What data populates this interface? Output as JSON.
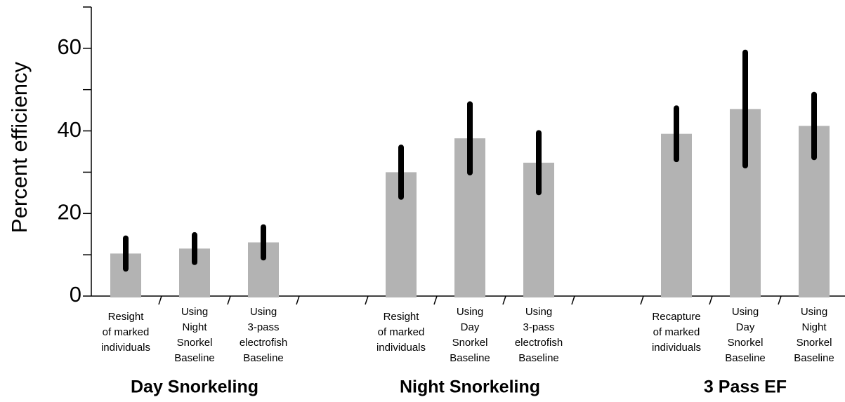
{
  "chart_data": {
    "type": "bar",
    "y_label": "Percent efficiency",
    "categories": [
      [
        "Resight",
        "of marked",
        "individuals"
      ],
      [
        "Using",
        "Night",
        "Snorkel",
        "Baseline"
      ],
      [
        "Using",
        "3-pass",
        "electrofish",
        "Baseline"
      ],
      null,
      [
        "Resight",
        "of marked",
        "individuals"
      ],
      [
        "Using",
        "Day",
        "Snorkel",
        "Baseline"
      ],
      [
        "Using",
        "3-pass",
        "electrofish",
        "Baseline"
      ],
      null,
      [
        "Recapture",
        "of marked",
        "individuals"
      ],
      [
        "Using",
        "Day",
        "Snorkel",
        "Baseline"
      ],
      [
        "Using",
        "Night",
        "Snorkel",
        "Baseline"
      ]
    ],
    "values": [
      10.3,
      11.5,
      13,
      null,
      30,
      38.2,
      32.3,
      null,
      39.3,
      45.3,
      41.2
    ],
    "errors": [
      3.7,
      3.3,
      3.7,
      null,
      6,
      8.3,
      7.2,
      null,
      6.2,
      13.7,
      7.6
    ],
    "group_labels": [
      "Day Snorkeling",
      "Night Snorkeling",
      "3 Pass EF"
    ],
    "color": "#b3b3b3",
    "error_color": "#000000",
    "ylim": [
      0,
      70
    ],
    "yticks": [
      0,
      20,
      40,
      60
    ],
    "minor_yticks": [
      10,
      30,
      50,
      70
    ]
  }
}
